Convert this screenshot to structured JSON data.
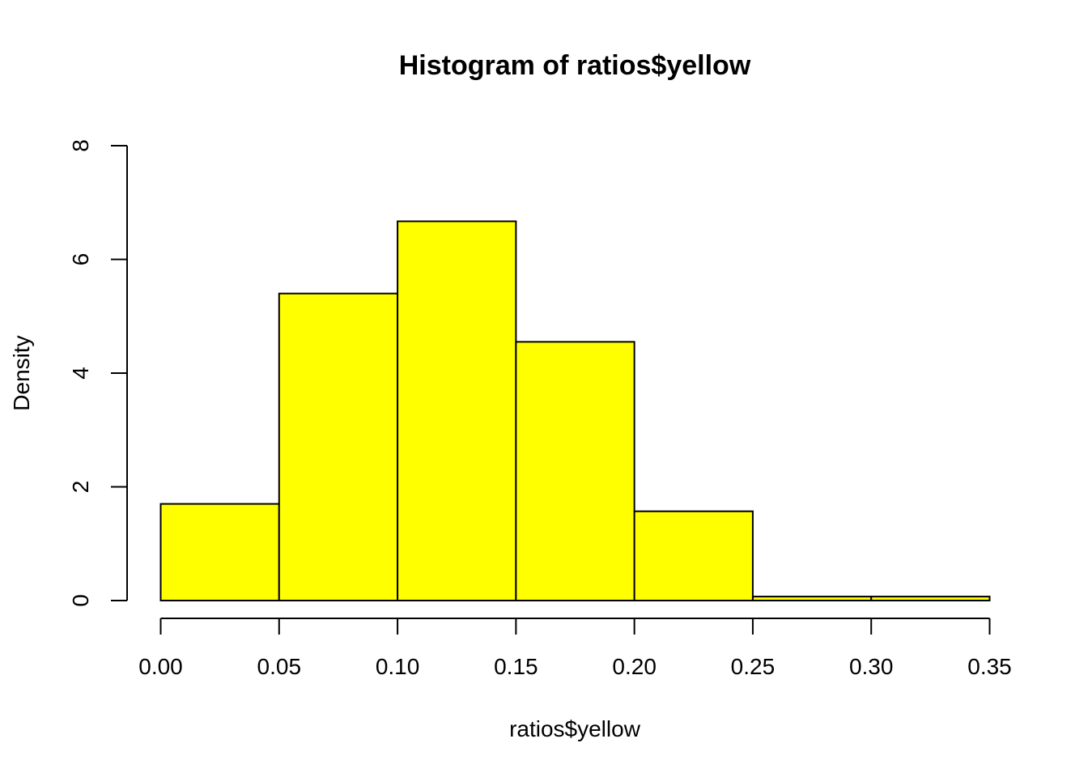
{
  "chart_data": {
    "type": "bar",
    "title": "Histogram of ratios$yellow",
    "xlabel": "ratios$yellow",
    "ylabel": "Density",
    "bins": [
      {
        "from": 0.0,
        "to": 0.05,
        "density": 1.7
      },
      {
        "from": 0.05,
        "to": 0.1,
        "density": 5.4
      },
      {
        "from": 0.1,
        "to": 0.15,
        "density": 6.67
      },
      {
        "from": 0.15,
        "to": 0.2,
        "density": 4.55
      },
      {
        "from": 0.2,
        "to": 0.25,
        "density": 1.57
      },
      {
        "from": 0.25,
        "to": 0.3,
        "density": 0.07
      },
      {
        "from": 0.3,
        "to": 0.35,
        "density": 0.07
      }
    ],
    "xlim": [
      0,
      0.35
    ],
    "ylim": [
      0,
      8
    ],
    "x_ticks": [
      "0.00",
      "0.05",
      "0.10",
      "0.15",
      "0.20",
      "0.25",
      "0.30",
      "0.35"
    ],
    "y_ticks": [
      "0",
      "2",
      "4",
      "6",
      "8"
    ],
    "bar_color": "#ffff00",
    "grid": false
  }
}
